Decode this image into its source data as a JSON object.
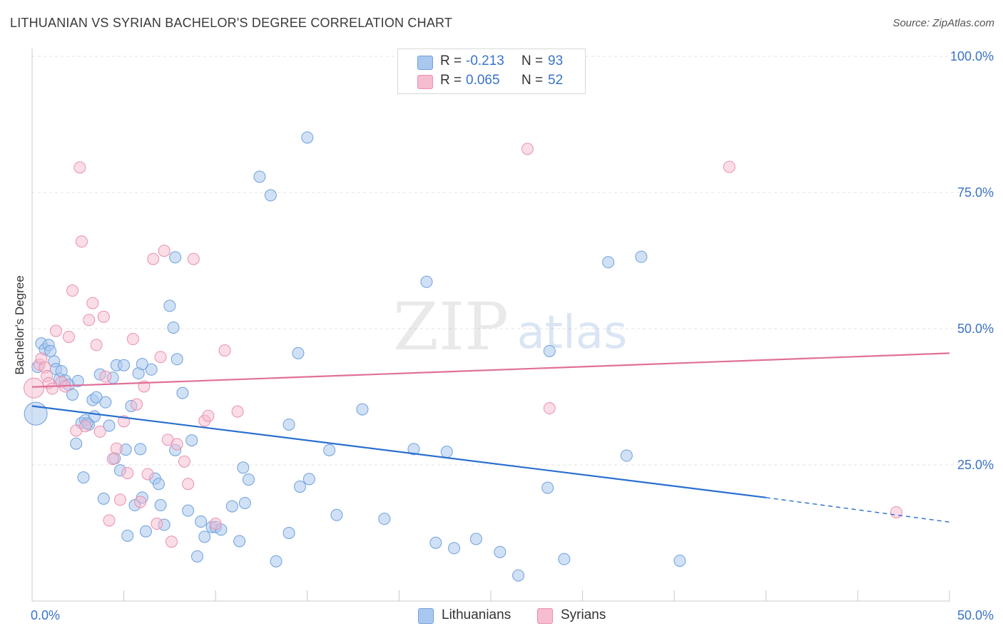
{
  "title": "LITHUANIAN VS SYRIAN BACHELOR'S DEGREE CORRELATION CHART",
  "source": "Source: ZipAtlas.com",
  "watermark": {
    "zip": "ZIP",
    "atlas": "atlas"
  },
  "legend": {
    "r_label": "R =",
    "n_label": "N =",
    "rows": [
      {
        "series": "Lithuanians",
        "r": "-0.213",
        "n": "93"
      },
      {
        "series": "Syrians",
        "r": "0.065",
        "n": "52"
      }
    ]
  },
  "colors": {
    "lith_fill": "#aac8ef",
    "lith_stroke": "#6f9fdc",
    "lith_line": "#2a6fd0",
    "syr_fill": "#f6bcd0",
    "syr_stroke": "#ea8fae",
    "syr_line": "#e0709a",
    "axis_label": "#3a73c8",
    "grid": "#e3e3e3"
  },
  "chart_data": {
    "type": "scatter",
    "title": "LITHUANIAN VS SYRIAN BACHELOR'S DEGREE CORRELATION CHART",
    "xlabel": "",
    "ylabel": "Bachelor's Degree",
    "xlim": [
      0,
      50
    ],
    "ylim": [
      0,
      100
    ],
    "x_tick_labels": [
      "0.0%",
      "50.0%"
    ],
    "y_tick_labels": [
      "100.0%",
      "75.0%",
      "50.0%",
      "25.0%"
    ],
    "y_ticks": [
      100,
      75,
      50,
      25
    ],
    "legend_position": "bottom",
    "series": [
      {
        "name": "Lithuanians",
        "points": [
          [
            0.2,
            34.4
          ],
          [
            0.3,
            43.0
          ],
          [
            0.5,
            47.3
          ],
          [
            0.7,
            46.2
          ],
          [
            0.9,
            47.0
          ],
          [
            1.0,
            45.9
          ],
          [
            1.2,
            44.0
          ],
          [
            1.3,
            42.6
          ],
          [
            1.5,
            40.8
          ],
          [
            1.6,
            42.2
          ],
          [
            1.8,
            40.5
          ],
          [
            2.0,
            39.7
          ],
          [
            2.2,
            37.9
          ],
          [
            2.4,
            28.9
          ],
          [
            2.5,
            40.4
          ],
          [
            2.7,
            32.7
          ],
          [
            2.8,
            22.7
          ],
          [
            2.9,
            33.2
          ],
          [
            3.1,
            32.4
          ],
          [
            3.3,
            36.9
          ],
          [
            3.4,
            33.9
          ],
          [
            3.5,
            37.4
          ],
          [
            3.7,
            41.6
          ],
          [
            3.9,
            18.8
          ],
          [
            4.0,
            36.5
          ],
          [
            4.2,
            32.2
          ],
          [
            4.4,
            41.0
          ],
          [
            4.5,
            26.2
          ],
          [
            4.6,
            43.3
          ],
          [
            4.8,
            24.0
          ],
          [
            5.0,
            43.3
          ],
          [
            5.1,
            27.8
          ],
          [
            5.2,
            12.0
          ],
          [
            5.4,
            35.8
          ],
          [
            5.6,
            17.6
          ],
          [
            5.8,
            41.8
          ],
          [
            5.9,
            27.9
          ],
          [
            6.0,
            19.0
          ],
          [
            6.2,
            12.8
          ],
          [
            6.5,
            42.5
          ],
          [
            6.7,
            22.5
          ],
          [
            6.9,
            21.5
          ],
          [
            7.0,
            17.6
          ],
          [
            7.2,
            14.0
          ],
          [
            7.5,
            54.2
          ],
          [
            7.7,
            50.2
          ],
          [
            7.8,
            27.7
          ],
          [
            7.9,
            44.4
          ],
          [
            8.2,
            38.2
          ],
          [
            8.5,
            16.6
          ],
          [
            8.7,
            29.5
          ],
          [
            9.0,
            8.2
          ],
          [
            9.2,
            14.6
          ],
          [
            9.4,
            11.8
          ],
          [
            9.8,
            13.6
          ],
          [
            10.0,
            13.6
          ],
          [
            10.3,
            13.1
          ],
          [
            10.9,
            17.4
          ],
          [
            11.3,
            11.0
          ],
          [
            11.5,
            24.5
          ],
          [
            11.6,
            18.0
          ],
          [
            11.8,
            22.3
          ],
          [
            12.4,
            77.9
          ],
          [
            13.0,
            74.5
          ],
          [
            13.3,
            7.3
          ],
          [
            14.0,
            12.5
          ],
          [
            14.0,
            32.4
          ],
          [
            14.5,
            45.5
          ],
          [
            14.6,
            21.0
          ],
          [
            15.1,
            22.4
          ],
          [
            16.2,
            27.7
          ],
          [
            16.6,
            15.8
          ],
          [
            18.0,
            35.2
          ],
          [
            19.2,
            15.1
          ],
          [
            20.8,
            27.9
          ],
          [
            21.5,
            58.6
          ],
          [
            22.0,
            10.7
          ],
          [
            22.6,
            27.4
          ],
          [
            23.0,
            9.7
          ],
          [
            24.2,
            11.4
          ],
          [
            25.5,
            9.0
          ],
          [
            26.5,
            4.7
          ],
          [
            28.1,
            20.8
          ],
          [
            28.2,
            45.9
          ],
          [
            29.0,
            7.7
          ],
          [
            31.4,
            62.2
          ],
          [
            32.4,
            26.7
          ],
          [
            33.2,
            63.2
          ],
          [
            35.3,
            7.4
          ],
          [
            15.0,
            85.1
          ],
          [
            7.8,
            63.1
          ],
          [
            6.0,
            43.5
          ],
          [
            3.0,
            32.6
          ]
        ]
      },
      {
        "name": "Syrians",
        "points": [
          [
            0.1,
            39.1
          ],
          [
            0.4,
            43.4
          ],
          [
            0.5,
            44.5
          ],
          [
            0.7,
            42.9
          ],
          [
            0.8,
            41.3
          ],
          [
            0.9,
            40.0
          ],
          [
            1.1,
            39.0
          ],
          [
            1.3,
            49.6
          ],
          [
            1.6,
            40.2
          ],
          [
            1.8,
            39.4
          ],
          [
            2.0,
            48.5
          ],
          [
            2.2,
            57.0
          ],
          [
            2.4,
            31.3
          ],
          [
            2.6,
            79.6
          ],
          [
            2.7,
            66.0
          ],
          [
            2.9,
            32.1
          ],
          [
            3.1,
            51.6
          ],
          [
            3.3,
            54.7
          ],
          [
            3.5,
            47.0
          ],
          [
            3.7,
            31.1
          ],
          [
            3.9,
            52.2
          ],
          [
            4.2,
            14.8
          ],
          [
            4.4,
            26.1
          ],
          [
            4.6,
            28.0
          ],
          [
            4.8,
            18.6
          ],
          [
            5.0,
            33.0
          ],
          [
            5.2,
            23.5
          ],
          [
            5.5,
            48.1
          ],
          [
            5.7,
            36.1
          ],
          [
            5.9,
            18.2
          ],
          [
            6.1,
            39.4
          ],
          [
            6.3,
            23.3
          ],
          [
            6.6,
            62.8
          ],
          [
            6.8,
            14.2
          ],
          [
            7.0,
            44.8
          ],
          [
            7.2,
            64.3
          ],
          [
            7.4,
            29.6
          ],
          [
            7.6,
            10.9
          ],
          [
            7.9,
            28.8
          ],
          [
            8.3,
            25.6
          ],
          [
            8.5,
            21.5
          ],
          [
            8.8,
            62.8
          ],
          [
            9.4,
            33.1
          ],
          [
            9.6,
            34.0
          ],
          [
            10.0,
            14.2
          ],
          [
            10.5,
            46.0
          ],
          [
            11.2,
            34.8
          ],
          [
            27.0,
            83.0
          ],
          [
            28.2,
            35.4
          ],
          [
            38.0,
            79.7
          ],
          [
            47.1,
            16.3
          ],
          [
            4.0,
            41.2
          ]
        ]
      }
    ],
    "trend_lines": [
      {
        "series": "Lithuanians",
        "from": [
          0,
          35.8
        ],
        "to": [
          40,
          19.0
        ],
        "dashed_to": [
          50,
          14.5
        ]
      },
      {
        "series": "Syrians",
        "from": [
          0,
          39.3
        ],
        "to": [
          50,
          45.5
        ]
      }
    ]
  }
}
